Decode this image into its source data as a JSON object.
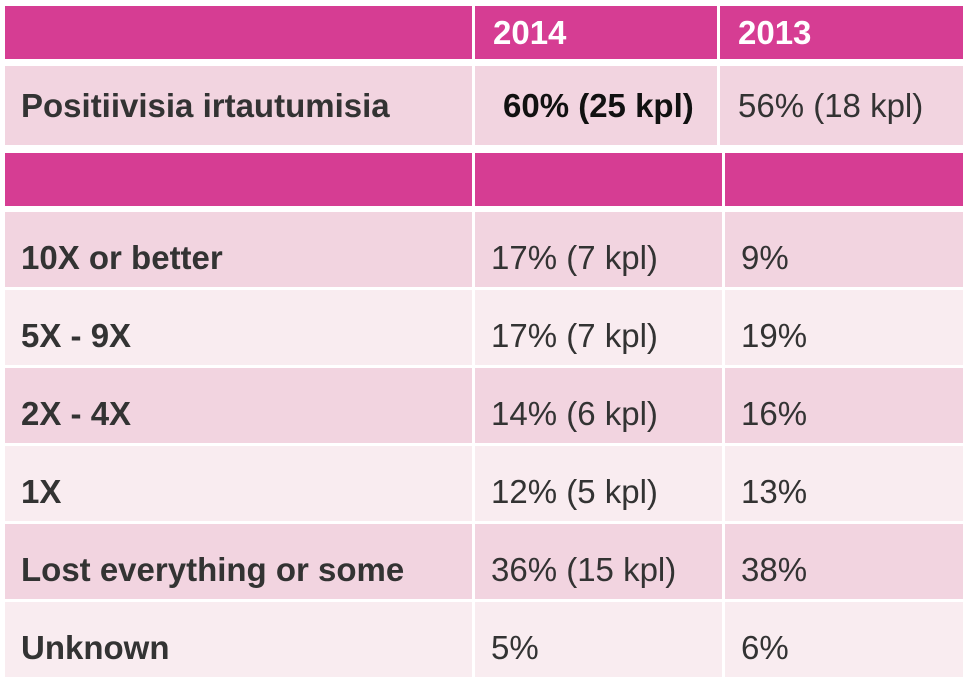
{
  "chart_data": {
    "type": "table",
    "columns": [
      "",
      "2014",
      "2013"
    ],
    "header_row": {
      "label": "",
      "y2014": "2014",
      "y2013": "2013"
    },
    "positive_row": {
      "label": "Positiivisia irtautumisia",
      "y2014": "60% (25 kpl)",
      "y2013": "56% (18 kpl)"
    },
    "rows": [
      {
        "label": "10X or better",
        "y2014": "17% (7 kpl)",
        "y2013": "9%"
      },
      {
        "label": "5X - 9X",
        "y2014": "17% (7 kpl)",
        "y2013": "19%"
      },
      {
        "label": "2X - 4X",
        "y2014": "14% (6 kpl)",
        "y2013": "16%"
      },
      {
        "label": "1X",
        "y2014": "12% (5 kpl)",
        "y2013": "13%"
      },
      {
        "label": "Lost everything or some",
        "y2014": "36% (15 kpl)",
        "y2013": "38%"
      },
      {
        "label": "Unknown",
        "y2014": "5%",
        "y2013": "6%"
      }
    ]
  },
  "colors": {
    "header": "#d63d93",
    "row_dark": "#f2d4e0",
    "row_light": "#f9ecf0",
    "text": "#333333"
  }
}
